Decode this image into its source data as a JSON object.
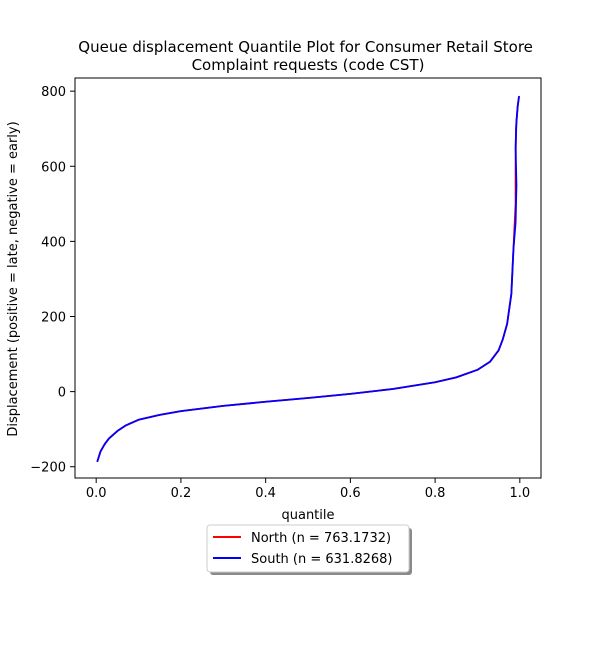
{
  "chart_data": {
    "type": "line",
    "title": "Queue displacement Quantile Plot for Consumer Retail Store\nComplaint  requests (code CST)",
    "xlabel": "quantile",
    "ylabel": "Displacement (positive = late, negative = early)",
    "xlim": [
      -0.05,
      1.05
    ],
    "ylim": [
      -230,
      835
    ],
    "x_ticks": [
      {
        "value": 0.0,
        "label": "0.0"
      },
      {
        "value": 0.2,
        "label": "0.2"
      },
      {
        "value": 0.4,
        "label": "0.4"
      },
      {
        "value": 0.6,
        "label": "0.6"
      },
      {
        "value": 0.8,
        "label": "0.8"
      },
      {
        "value": 1.0,
        "label": "1.0"
      }
    ],
    "y_ticks": [
      {
        "value": -200,
        "label": "−200"
      },
      {
        "value": 0,
        "label": "0"
      },
      {
        "value": 200,
        "label": "200"
      },
      {
        "value": 400,
        "label": "400"
      },
      {
        "value": 600,
        "label": "600"
      },
      {
        "value": 800,
        "label": "800"
      }
    ],
    "grid": false,
    "legend_position": "below-center",
    "series": [
      {
        "name": "North (n = 763.1732)",
        "color": "#ff0000",
        "points": [
          [
            0.003,
            -185
          ],
          [
            0.01,
            -160
          ],
          [
            0.02,
            -140
          ],
          [
            0.03,
            -125
          ],
          [
            0.05,
            -105
          ],
          [
            0.07,
            -90
          ],
          [
            0.1,
            -75
          ],
          [
            0.15,
            -62
          ],
          [
            0.2,
            -52
          ],
          [
            0.3,
            -38
          ],
          [
            0.4,
            -27
          ],
          [
            0.5,
            -17
          ],
          [
            0.6,
            -6
          ],
          [
            0.7,
            7
          ],
          [
            0.8,
            25
          ],
          [
            0.85,
            38
          ],
          [
            0.9,
            58
          ],
          [
            0.93,
            80
          ],
          [
            0.95,
            110
          ],
          [
            0.96,
            140
          ],
          [
            0.97,
            180
          ],
          [
            0.98,
            260
          ],
          [
            0.985,
            380
          ],
          [
            0.99,
            500
          ],
          [
            0.99,
            600
          ],
          [
            0.991,
            700
          ],
          [
            0.995,
            760
          ],
          [
            0.998,
            785
          ]
        ]
      },
      {
        "name": "South (n = 631.8268)",
        "color": "#0000ff",
        "points": [
          [
            0.003,
            -185
          ],
          [
            0.01,
            -160
          ],
          [
            0.02,
            -140
          ],
          [
            0.03,
            -125
          ],
          [
            0.05,
            -105
          ],
          [
            0.07,
            -90
          ],
          [
            0.1,
            -75
          ],
          [
            0.15,
            -62
          ],
          [
            0.2,
            -52
          ],
          [
            0.3,
            -38
          ],
          [
            0.4,
            -27
          ],
          [
            0.5,
            -17
          ],
          [
            0.6,
            -6
          ],
          [
            0.7,
            7
          ],
          [
            0.8,
            25
          ],
          [
            0.85,
            38
          ],
          [
            0.9,
            58
          ],
          [
            0.93,
            80
          ],
          [
            0.95,
            110
          ],
          [
            0.96,
            140
          ],
          [
            0.97,
            180
          ],
          [
            0.98,
            260
          ],
          [
            0.985,
            380
          ],
          [
            0.99,
            450
          ],
          [
            0.992,
            550
          ],
          [
            0.99,
            650
          ],
          [
            0.992,
            720
          ],
          [
            0.995,
            760
          ],
          [
            0.998,
            785
          ]
        ]
      }
    ]
  }
}
